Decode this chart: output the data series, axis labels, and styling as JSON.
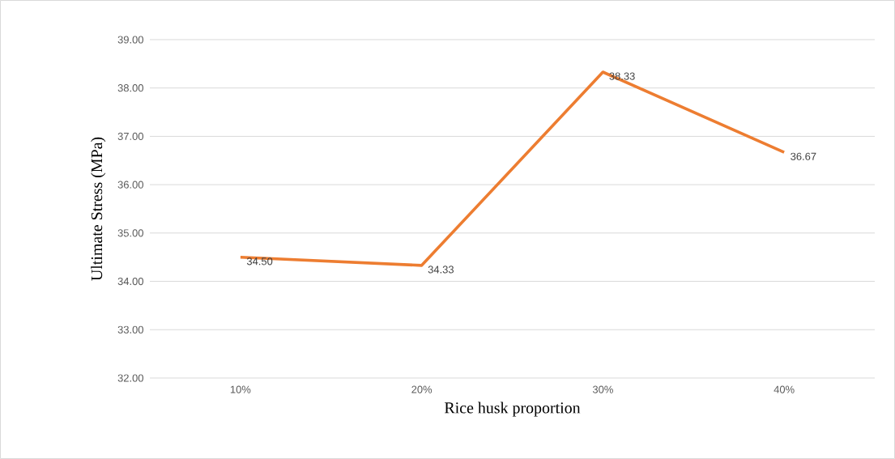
{
  "chart_data": {
    "type": "line",
    "xlabel": "Rice husk proportion",
    "ylabel": "Ultimate Stress (MPa)",
    "categories": [
      "10%",
      "20%",
      "30%",
      "40%"
    ],
    "values": [
      34.5,
      34.33,
      38.33,
      36.67
    ],
    "value_labels": [
      "34.50",
      "34.33",
      "38.33",
      "36.67"
    ],
    "color": "#ed7d31",
    "marker": "none",
    "line_style": "solid",
    "grid": "y",
    "ylim": [
      32,
      39
    ],
    "yticks": [
      {
        "value": 32,
        "label": "32.00"
      },
      {
        "value": 33,
        "label": "33.00"
      },
      {
        "value": 34,
        "label": "34.00"
      },
      {
        "value": 35,
        "label": "35.00"
      },
      {
        "value": 36,
        "label": "36.00"
      },
      {
        "value": 37,
        "label": "37.00"
      },
      {
        "value": 38,
        "label": "38.00"
      },
      {
        "value": 39,
        "label": "39.00"
      }
    ]
  }
}
